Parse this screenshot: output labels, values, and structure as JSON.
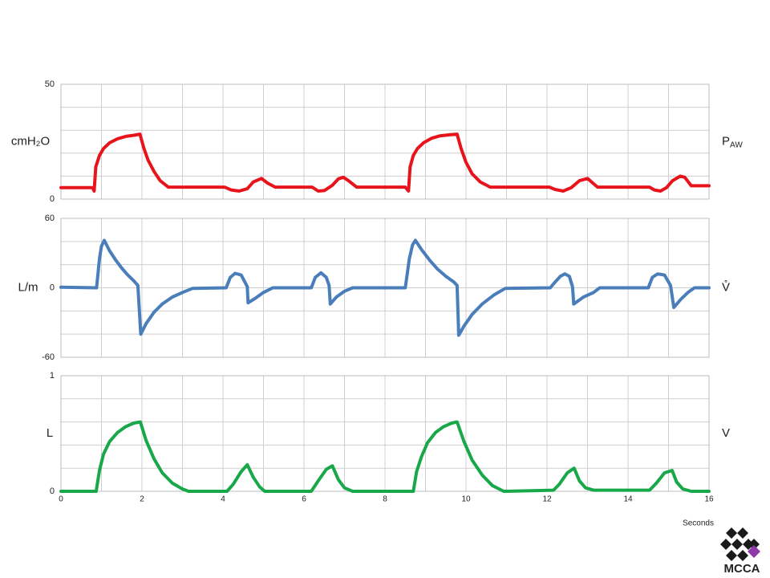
{
  "chart_data": [
    {
      "type": "line",
      "y_label": "cmH₂O",
      "signal": "P",
      "signal_sub": "AW",
      "color": "#e8141b",
      "xlim": [
        0,
        16
      ],
      "xgrid": [
        0,
        1,
        2,
        3,
        4,
        5,
        6,
        7,
        8,
        9,
        10,
        11,
        12,
        13,
        14,
        15,
        16
      ],
      "ylim": [
        0,
        50
      ],
      "yticks": [
        0,
        50
      ],
      "ygrid": [
        0,
        10,
        20,
        30,
        40,
        50
      ],
      "x": [
        0,
        0.78,
        0.82,
        0.86,
        0.95,
        1.05,
        1.2,
        1.4,
        1.6,
        1.8,
        1.95,
        2.05,
        2.15,
        2.3,
        2.45,
        2.65,
        4.04,
        4.2,
        4.4,
        4.6,
        4.75,
        4.95,
        5.1,
        5.29,
        6.2,
        6.35,
        6.5,
        6.7,
        6.85,
        6.97,
        7.1,
        7.3,
        8.5,
        8.58,
        8.62,
        8.7,
        8.8,
        8.95,
        9.15,
        9.35,
        9.6,
        9.78,
        9.88,
        10.0,
        10.15,
        10.35,
        10.6,
        12.06,
        12.2,
        12.4,
        12.6,
        12.8,
        13.0,
        13.1,
        13.25,
        14.53,
        14.65,
        14.8,
        14.95,
        15.1,
        15.29,
        15.4,
        15.56,
        16
      ],
      "values": [
        5,
        5,
        3.5,
        14,
        19,
        22,
        24.5,
        26.3,
        27.3,
        27.8,
        28.3,
        22,
        17,
        12,
        8,
        5.2,
        5.2,
        4,
        3.5,
        4.5,
        7.5,
        9,
        7,
        5.2,
        5.2,
        3.5,
        3.7,
        6,
        8.8,
        9.5,
        8,
        5.2,
        5.2,
        3.5,
        14,
        19,
        22,
        24.5,
        26.5,
        27.5,
        28,
        28.3,
        22,
        16,
        11,
        7.5,
        5.2,
        5.2,
        4.2,
        3.5,
        5,
        8,
        9,
        7.5,
        5.2,
        5.2,
        4,
        3.5,
        5,
        8,
        10,
        9.5,
        5.8,
        5.8
      ]
    },
    {
      "type": "line",
      "y_label": "L/m",
      "signal": "V̊",
      "color": "#4a7ebb",
      "xlim": [
        0,
        16
      ],
      "xgrid": [
        0,
        1,
        2,
        3,
        4,
        5,
        6,
        7,
        8,
        9,
        10,
        11,
        12,
        13,
        14,
        15,
        16
      ],
      "ylim": [
        -60,
        60
      ],
      "yticks": [
        -60,
        0,
        60
      ],
      "ygrid": [
        -60,
        -40,
        -20,
        0,
        20,
        40,
        60
      ],
      "x": [
        0,
        0.88,
        0.95,
        1.0,
        1.07,
        1.2,
        1.35,
        1.5,
        1.65,
        1.8,
        1.9,
        1.97,
        2.1,
        2.3,
        2.5,
        2.75,
        3.0,
        3.25,
        4.08,
        4.18,
        4.3,
        4.45,
        4.6,
        4.62,
        4.8,
        5.0,
        5.23,
        6.18,
        6.28,
        6.42,
        6.55,
        6.62,
        6.65,
        6.8,
        7.0,
        7.2,
        8.5,
        8.6,
        8.68,
        8.75,
        8.9,
        9.1,
        9.3,
        9.5,
        9.7,
        9.78,
        9.82,
        9.95,
        10.15,
        10.4,
        10.7,
        10.97,
        12.08,
        12.2,
        12.33,
        12.44,
        12.55,
        12.63,
        12.66,
        12.9,
        13.15,
        13.3,
        14.5,
        14.6,
        14.73,
        14.9,
        15.05,
        15.13,
        15.3,
        15.48,
        15.64,
        16
      ],
      "values": [
        0.5,
        0,
        25,
        36,
        41,
        32,
        24,
        17,
        11,
        6,
        2,
        -40,
        -31,
        -21,
        -14,
        -8,
        -4,
        -0.5,
        0,
        9,
        12.5,
        11,
        1,
        -13,
        -9,
        -4,
        0,
        0,
        9,
        13,
        9,
        2,
        -14,
        -8,
        -3,
        0,
        0,
        25,
        37,
        41,
        33,
        24,
        16,
        10,
        5,
        2,
        -41,
        -33,
        -23,
        -14,
        -6,
        -0.5,
        0,
        5,
        10,
        12,
        10,
        1,
        -14,
        -8,
        -4,
        0,
        0,
        9,
        12,
        11,
        2,
        -17,
        -10,
        -4,
        0,
        0
      ]
    },
    {
      "type": "line",
      "y_label": "L",
      "signal": "V",
      "color": "#18a84a",
      "x_label": "Seconds",
      "xlim": [
        0,
        16
      ],
      "xticks": [
        0,
        2,
        4,
        6,
        8,
        10,
        12,
        14,
        16
      ],
      "xgrid": [
        0,
        1,
        2,
        3,
        4,
        5,
        6,
        7,
        8,
        9,
        10,
        11,
        12,
        13,
        14,
        15,
        16
      ],
      "ylim": [
        0,
        1
      ],
      "yticks": [
        0,
        1
      ],
      "ygrid": [
        0,
        0.2,
        0.4,
        0.6,
        0.8,
        1
      ],
      "x": [
        0,
        0.87,
        0.95,
        1.05,
        1.2,
        1.4,
        1.6,
        1.8,
        1.96,
        2.1,
        2.3,
        2.5,
        2.75,
        3.0,
        3.15,
        4.1,
        4.25,
        4.45,
        4.6,
        4.75,
        4.9,
        5.03,
        6.18,
        6.35,
        6.55,
        6.7,
        6.85,
        7.0,
        7.2,
        8.7,
        8.78,
        8.9,
        9.05,
        9.25,
        9.45,
        9.65,
        9.78,
        9.95,
        10.15,
        10.4,
        10.65,
        10.93,
        12.16,
        12.3,
        12.5,
        12.67,
        12.8,
        12.95,
        13.15,
        14.53,
        14.7,
        14.9,
        15.09,
        15.2,
        15.35,
        15.56,
        16
      ],
      "values": [
        0,
        0,
        0.18,
        0.32,
        0.43,
        0.51,
        0.56,
        0.59,
        0.6,
        0.44,
        0.28,
        0.16,
        0.07,
        0.02,
        0,
        0,
        0.06,
        0.17,
        0.23,
        0.12,
        0.04,
        0,
        0,
        0.09,
        0.19,
        0.22,
        0.1,
        0.03,
        0,
        0,
        0.17,
        0.3,
        0.42,
        0.51,
        0.56,
        0.59,
        0.6,
        0.43,
        0.27,
        0.14,
        0.05,
        0,
        0.01,
        0.06,
        0.16,
        0.2,
        0.09,
        0.03,
        0.01,
        0.01,
        0.07,
        0.16,
        0.18,
        0.08,
        0.02,
        0,
        0
      ]
    }
  ],
  "logo": "MCCA"
}
